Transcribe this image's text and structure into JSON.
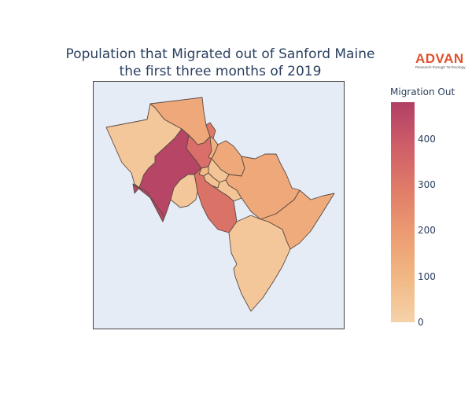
{
  "title": {
    "line1": "Population that Migrated out of Sanford Maine",
    "line2": "the first three months of 2019"
  },
  "logo": {
    "name": "ADVAN",
    "tagline": "Research through Technology",
    "color": "#e0502b"
  },
  "colorbar": {
    "title": "Migration Out",
    "min": 0,
    "max": 480,
    "ticks": [
      "400",
      "300",
      "200",
      "100",
      "0"
    ],
    "tick_values": [
      400,
      300,
      200,
      100,
      0
    ],
    "colors": [
      "#f6d2a9",
      "#f1b884",
      "#ec9c72",
      "#e07c68",
      "#cf5e68",
      "#b13f64"
    ]
  },
  "map_data": {
    "type": "choropleth",
    "place": "Sanford, Maine",
    "region_values": {
      "nw": 40,
      "n": 150,
      "w_dark": 460,
      "c_tall": 330,
      "c_small1": 300,
      "ne_tiny": 120,
      "e_orange": 150,
      "center_light": 50,
      "c_small2": 90,
      "c_small3": 60,
      "s_mid": 50,
      "c_red": 320,
      "c_light": 40,
      "e_big": 150,
      "se_big": 140,
      "s_big": 40
    }
  }
}
